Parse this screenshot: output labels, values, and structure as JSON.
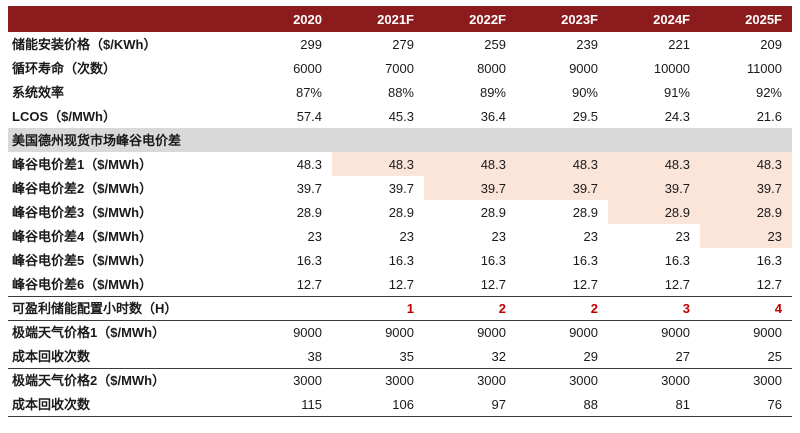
{
  "colors": {
    "header_bg": "#8C1B1E",
    "header_text": "#FFFFFF",
    "section_bg": "#D9D9D9",
    "highlight_bg": "#FBE5D8",
    "accent_red": "#C00000",
    "line_color": "#3A3A3A",
    "text_color": "#1A1A1A"
  },
  "chart_data": {
    "type": "table",
    "columns": [
      "2020",
      "2021F",
      "2022F",
      "2023F",
      "2024F",
      "2025F"
    ],
    "rows": [
      {
        "type": "data",
        "label": "储能安装价格（$/KWh）",
        "values": [
          "299",
          "279",
          "259",
          "239",
          "221",
          "209"
        ]
      },
      {
        "type": "data",
        "label": "循环寿命（次数）",
        "values": [
          "6000",
          "7000",
          "8000",
          "9000",
          "10000",
          "11000"
        ]
      },
      {
        "type": "data",
        "label": "系统效率",
        "values": [
          "87%",
          "88%",
          "89%",
          "90%",
          "91%",
          "92%"
        ]
      },
      {
        "type": "data",
        "label": "LCOS（$/MWh）",
        "values": [
          "57.4",
          "45.3",
          "36.4",
          "29.5",
          "24.3",
          "21.6"
        ]
      },
      {
        "type": "section",
        "label": "美国德州现货市场峰谷电价差"
      },
      {
        "type": "data",
        "label": "峰谷电价差1（$/MWh）",
        "values": [
          "48.3",
          "48.3",
          "48.3",
          "48.3",
          "48.3",
          "48.3"
        ],
        "highlight": [
          1,
          2,
          3,
          4,
          5
        ]
      },
      {
        "type": "data",
        "label": "峰谷电价差2（$/MWh）",
        "values": [
          "39.7",
          "39.7",
          "39.7",
          "39.7",
          "39.7",
          "39.7"
        ],
        "highlight": [
          2,
          3,
          4,
          5
        ]
      },
      {
        "type": "data",
        "label": "峰谷电价差3（$/MWh）",
        "values": [
          "28.9",
          "28.9",
          "28.9",
          "28.9",
          "28.9",
          "28.9"
        ],
        "highlight": [
          4,
          5
        ]
      },
      {
        "type": "data",
        "label": "峰谷电价差4（$/MWh）",
        "values": [
          "23",
          "23",
          "23",
          "23",
          "23",
          "23"
        ],
        "highlight": [
          5
        ]
      },
      {
        "type": "data",
        "label": "峰谷电价差5（$/MWh）",
        "values": [
          "16.3",
          "16.3",
          "16.3",
          "16.3",
          "16.3",
          "16.3"
        ]
      },
      {
        "type": "data",
        "label": "峰谷电价差6（$/MWh）",
        "values": [
          "12.7",
          "12.7",
          "12.7",
          "12.7",
          "12.7",
          "12.7"
        ]
      },
      {
        "type": "data",
        "label": "可盈利储能配置小时数（H）",
        "values": [
          "",
          "1",
          "2",
          "2",
          "3",
          "4"
        ],
        "red_values": true,
        "line_above": true
      },
      {
        "type": "data",
        "label": "极端天气价格1（$/MWh）",
        "values": [
          "9000",
          "9000",
          "9000",
          "9000",
          "9000",
          "9000"
        ],
        "line_above": true
      },
      {
        "type": "data",
        "label": "成本回收次数",
        "values": [
          "38",
          "35",
          "32",
          "29",
          "27",
          "25"
        ]
      },
      {
        "type": "data",
        "label": "极端天气价格2（$/MWh）",
        "values": [
          "3000",
          "3000",
          "3000",
          "3000",
          "3000",
          "3000"
        ],
        "line_above": true
      },
      {
        "type": "data",
        "label": "成本回收次数",
        "values": [
          "115",
          "106",
          "97",
          "88",
          "81",
          "76"
        ]
      }
    ]
  }
}
